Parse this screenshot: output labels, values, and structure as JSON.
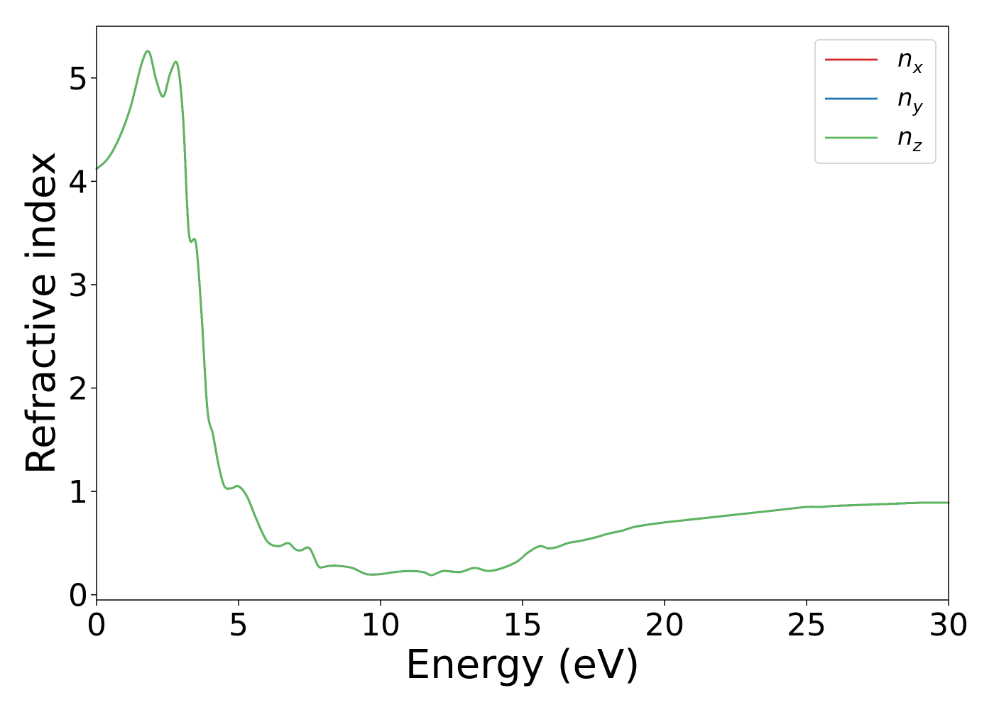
{
  "chart_data": {
    "type": "line",
    "xlabel": "Energy (eV)",
    "ylabel": "Refractive index",
    "xlim": [
      0,
      30
    ],
    "ylim": [
      -0.05,
      5.5
    ],
    "xticks": [
      "0",
      "5",
      "10",
      "15",
      "20",
      "25",
      "30"
    ],
    "yticks": [
      "0",
      "1",
      "2",
      "3",
      "4",
      "5"
    ],
    "grid": false,
    "legend_position": "top-right",
    "series": [
      {
        "name": "n_x",
        "label_base": "n",
        "label_sub": "x",
        "color": "#d62728",
        "x": [
          0,
          0.4,
          0.8,
          1.2,
          1.6,
          1.85,
          2.1,
          2.35,
          2.6,
          2.85,
          3.05,
          3.25,
          3.5,
          3.7,
          3.9,
          4.1,
          4.3,
          4.5,
          4.75,
          5.0,
          5.3,
          5.6,
          6.0,
          6.4,
          6.75,
          7.0,
          7.2,
          7.5,
          7.8,
          8.0,
          8.2,
          8.5,
          9.0,
          9.5,
          10.0,
          10.5,
          11.0,
          11.5,
          11.8,
          12.2,
          12.8,
          13.3,
          13.8,
          14.3,
          14.8,
          15.2,
          15.6,
          15.9,
          16.2,
          16.6,
          17.0,
          17.5,
          18.0,
          18.5,
          19.0,
          20.0,
          21.0,
          22.0,
          23.0,
          24.0,
          25.0,
          25.5,
          26.0,
          27.0,
          28.0,
          29.0,
          30.0
        ],
        "values": [
          4.12,
          4.22,
          4.42,
          4.72,
          5.15,
          5.25,
          4.98,
          4.82,
          5.05,
          5.13,
          4.6,
          3.5,
          3.4,
          2.7,
          1.8,
          1.55,
          1.25,
          1.05,
          1.03,
          1.05,
          0.95,
          0.75,
          0.52,
          0.47,
          0.5,
          0.44,
          0.43,
          0.45,
          0.28,
          0.27,
          0.28,
          0.28,
          0.26,
          0.2,
          0.2,
          0.22,
          0.23,
          0.22,
          0.19,
          0.23,
          0.22,
          0.26,
          0.23,
          0.26,
          0.32,
          0.41,
          0.47,
          0.45,
          0.46,
          0.5,
          0.52,
          0.55,
          0.59,
          0.62,
          0.66,
          0.7,
          0.73,
          0.76,
          0.79,
          0.82,
          0.85,
          0.85,
          0.86,
          0.87,
          0.88,
          0.89,
          0.89
        ]
      },
      {
        "name": "n_y",
        "label_base": "n",
        "label_sub": "y",
        "color": "#1f77b4",
        "x": [
          0,
          0.4,
          0.8,
          1.2,
          1.6,
          1.85,
          2.1,
          2.35,
          2.6,
          2.85,
          3.05,
          3.25,
          3.5,
          3.7,
          3.9,
          4.1,
          4.3,
          4.5,
          4.75,
          5.0,
          5.3,
          5.6,
          6.0,
          6.4,
          6.75,
          7.0,
          7.2,
          7.5,
          7.8,
          8.0,
          8.2,
          8.5,
          9.0,
          9.5,
          10.0,
          10.5,
          11.0,
          11.5,
          11.8,
          12.2,
          12.8,
          13.3,
          13.8,
          14.3,
          14.8,
          15.2,
          15.6,
          15.9,
          16.2,
          16.6,
          17.0,
          17.5,
          18.0,
          18.5,
          19.0,
          20.0,
          21.0,
          22.0,
          23.0,
          24.0,
          25.0,
          25.5,
          26.0,
          27.0,
          28.0,
          29.0,
          30.0
        ],
        "values": [
          4.12,
          4.22,
          4.42,
          4.72,
          5.15,
          5.25,
          4.98,
          4.82,
          5.05,
          5.13,
          4.6,
          3.5,
          3.4,
          2.7,
          1.8,
          1.55,
          1.25,
          1.05,
          1.03,
          1.05,
          0.95,
          0.75,
          0.52,
          0.47,
          0.5,
          0.44,
          0.43,
          0.45,
          0.28,
          0.27,
          0.28,
          0.28,
          0.26,
          0.2,
          0.2,
          0.22,
          0.23,
          0.22,
          0.19,
          0.23,
          0.22,
          0.26,
          0.23,
          0.26,
          0.32,
          0.41,
          0.47,
          0.45,
          0.46,
          0.5,
          0.52,
          0.55,
          0.59,
          0.62,
          0.66,
          0.7,
          0.73,
          0.76,
          0.79,
          0.82,
          0.85,
          0.85,
          0.86,
          0.87,
          0.88,
          0.89,
          0.89
        ]
      },
      {
        "name": "n_z",
        "label_base": "n",
        "label_sub": "z",
        "color": "#5cb85c",
        "x": [
          0,
          0.4,
          0.8,
          1.2,
          1.6,
          1.85,
          2.1,
          2.35,
          2.6,
          2.85,
          3.05,
          3.25,
          3.5,
          3.7,
          3.9,
          4.1,
          4.3,
          4.5,
          4.75,
          5.0,
          5.3,
          5.6,
          6.0,
          6.4,
          6.75,
          7.0,
          7.2,
          7.5,
          7.8,
          8.0,
          8.2,
          8.5,
          9.0,
          9.5,
          10.0,
          10.5,
          11.0,
          11.5,
          11.8,
          12.2,
          12.8,
          13.3,
          13.8,
          14.3,
          14.8,
          15.2,
          15.6,
          15.9,
          16.2,
          16.6,
          17.0,
          17.5,
          18.0,
          18.5,
          19.0,
          20.0,
          21.0,
          22.0,
          23.0,
          24.0,
          25.0,
          25.5,
          26.0,
          27.0,
          28.0,
          29.0,
          30.0
        ],
        "values": [
          4.12,
          4.22,
          4.42,
          4.72,
          5.15,
          5.25,
          4.98,
          4.82,
          5.05,
          5.13,
          4.6,
          3.5,
          3.4,
          2.7,
          1.8,
          1.55,
          1.25,
          1.05,
          1.03,
          1.05,
          0.95,
          0.75,
          0.52,
          0.47,
          0.5,
          0.44,
          0.43,
          0.45,
          0.28,
          0.27,
          0.28,
          0.28,
          0.26,
          0.2,
          0.2,
          0.22,
          0.23,
          0.22,
          0.19,
          0.23,
          0.22,
          0.26,
          0.23,
          0.26,
          0.32,
          0.41,
          0.47,
          0.45,
          0.46,
          0.5,
          0.52,
          0.55,
          0.59,
          0.62,
          0.66,
          0.7,
          0.73,
          0.76,
          0.79,
          0.82,
          0.85,
          0.85,
          0.86,
          0.87,
          0.88,
          0.89,
          0.89
        ]
      }
    ]
  }
}
